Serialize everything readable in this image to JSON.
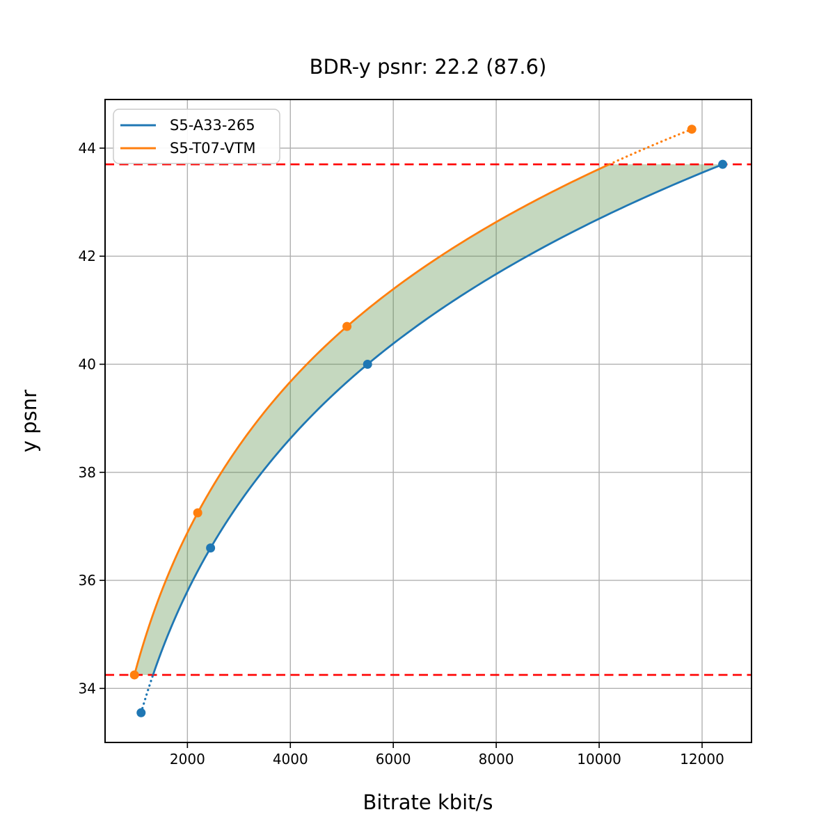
{
  "chart_data": {
    "type": "line",
    "title": "BDR-y psnr: 22.2 (87.6)",
    "xlabel": "Bitrate kbit/s",
    "ylabel": "y psnr",
    "xlim": [
      400,
      12960
    ],
    "ylim": [
      33.0,
      44.9
    ],
    "xticks": [
      2000,
      4000,
      6000,
      8000,
      10000,
      12000
    ],
    "yticks": [
      34,
      36,
      38,
      40,
      42,
      44
    ],
    "grid": true,
    "grid_color": "#b0b0b0",
    "frame_color": "#000000",
    "legend_position": "upper left",
    "x_scale_interpolation": "log",
    "series": [
      {
        "name": "S5-A33-265",
        "color": "#1f77b4",
        "marker": "circle",
        "points": [
          [
            1100,
            33.55
          ],
          [
            2450,
            36.6
          ],
          [
            5500,
            40.0
          ],
          [
            12400,
            43.7
          ]
        ]
      },
      {
        "name": "S5-T07-VTM",
        "color": "#ff7f0e",
        "marker": "circle",
        "points": [
          [
            970,
            34.25
          ],
          [
            2200,
            37.25
          ],
          [
            5100,
            40.7
          ],
          [
            11800,
            44.35
          ]
        ]
      }
    ],
    "integration_bounds": {
      "lower_psnr": 34.25,
      "upper_psnr": 43.7,
      "line_color": "#ff0000",
      "line_style": "dashed"
    },
    "shaded_region": {
      "between": [
        "S5-T07-VTM",
        "S5-A33-265"
      ],
      "color": "#5a9048",
      "opacity": 0.35
    }
  }
}
